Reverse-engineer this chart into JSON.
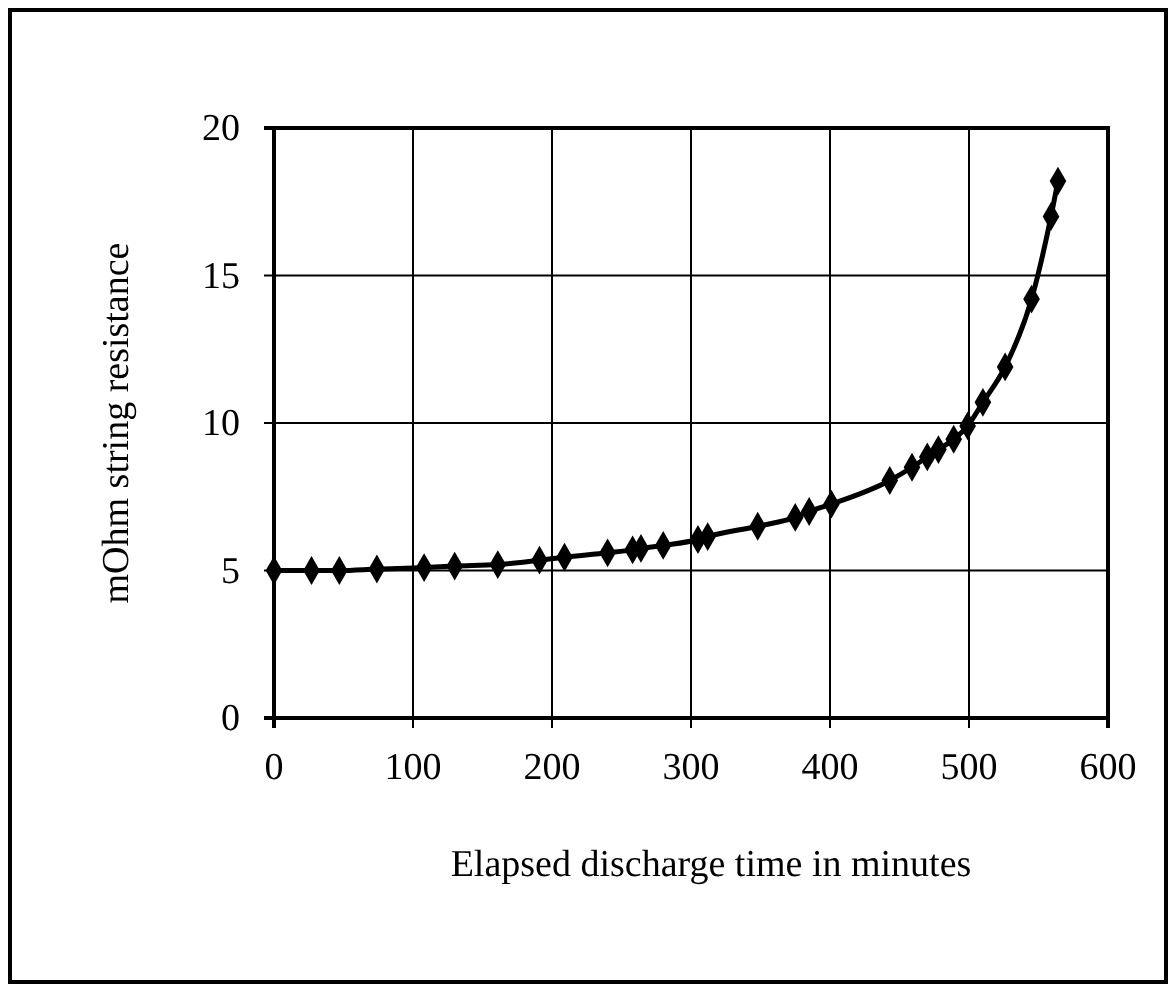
{
  "chart_data": {
    "type": "line",
    "xlabel": "Elapsed discharge time in minutes",
    "ylabel": "mOhm string resistance",
    "xlim": [
      0,
      600
    ],
    "xticks": [
      0,
      100,
      200,
      300,
      400,
      500,
      600
    ],
    "ylim": [
      0,
      20
    ],
    "yticks": [
      0,
      5,
      10,
      15,
      20
    ],
    "grid": true,
    "marker": "diamond",
    "line_style": "solid",
    "series": [
      {
        "color": "#000000",
        "x": [
          0,
          27,
          47,
          74,
          108,
          130,
          161,
          191,
          209,
          240,
          258,
          264,
          280,
          305,
          312,
          348,
          375,
          385,
          401,
          443,
          459,
          470,
          478,
          489,
          499,
          510,
          526,
          545,
          559,
          564
        ],
        "values": [
          5.0,
          5.0,
          5.0,
          5.05,
          5.1,
          5.15,
          5.2,
          5.35,
          5.45,
          5.6,
          5.7,
          5.75,
          5.85,
          6.05,
          6.15,
          6.5,
          6.8,
          7.0,
          7.25,
          8.05,
          8.5,
          8.85,
          9.1,
          9.45,
          9.9,
          10.7,
          11.9,
          14.2,
          17.0,
          18.2
        ]
      }
    ]
  }
}
